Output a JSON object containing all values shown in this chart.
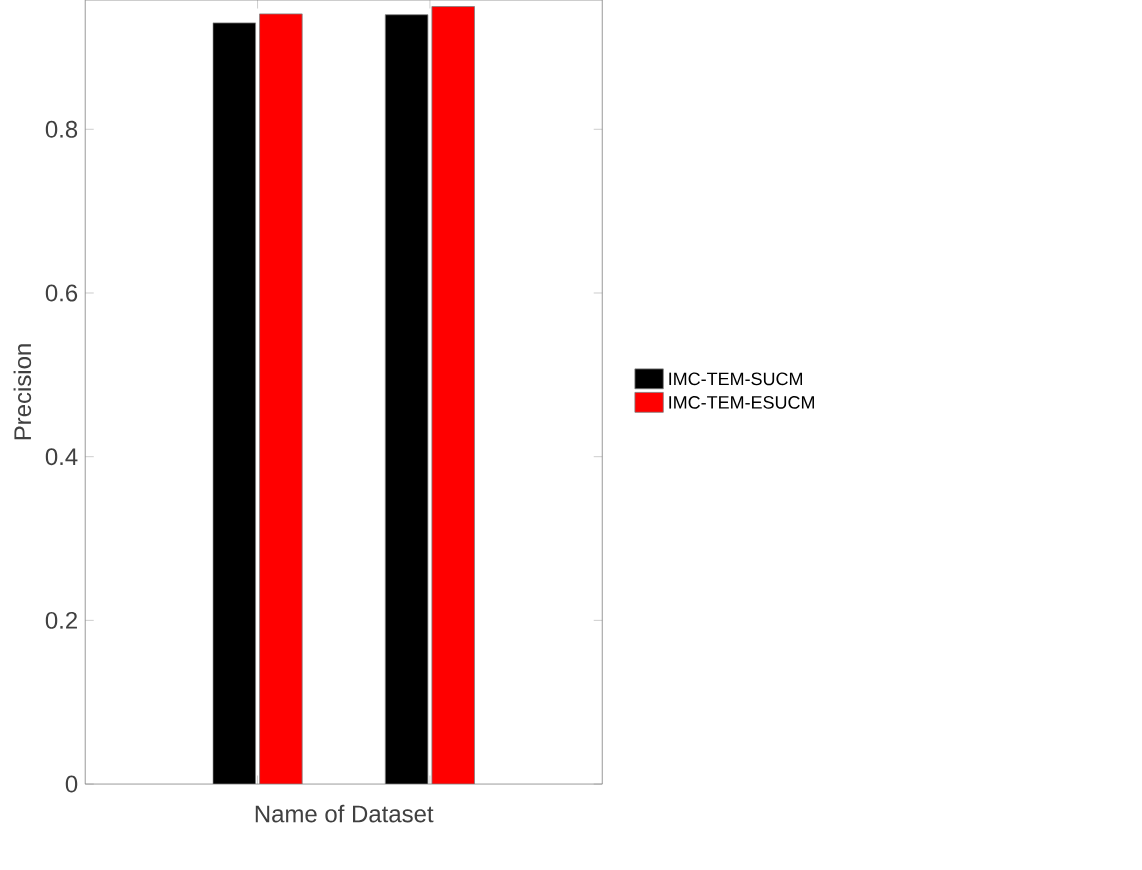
{
  "chart_data": {
    "type": "bar",
    "xlabel": "Name of Dataset",
    "ylabel": "Precision",
    "categories": [
      null,
      null
    ],
    "series": [
      {
        "name": "IMC-TEM-SUCM",
        "color": "#000000",
        "values": [
          0.93,
          0.94
        ]
      },
      {
        "name": "IMC-TEM-ESUCM",
        "color": "#ff0000",
        "values": [
          0.941,
          0.95
        ]
      }
    ],
    "ylim": [
      0,
      0.958
    ],
    "yticks": [
      0,
      0.2,
      0.4,
      0.6,
      0.8
    ],
    "grid": false,
    "legend": "right"
  }
}
